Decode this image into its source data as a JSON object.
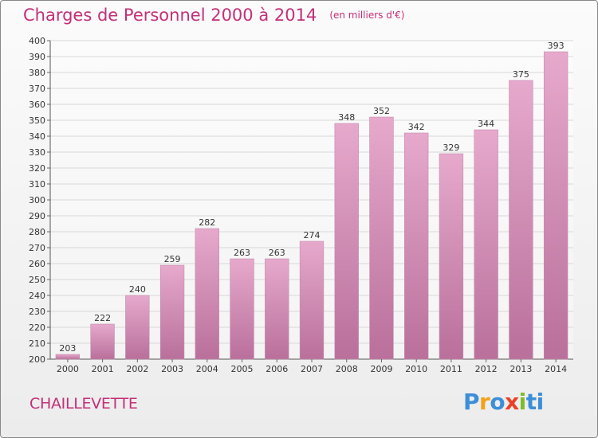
{
  "title": "Charges de Personnel 2000 à 2014",
  "title_unit": "(en milliers d'€)",
  "commune": "CHAILLEVETTE",
  "logo": "Proxiti",
  "colors": {
    "bar_top": "#e6a9cc",
    "bar_bottom": "#b9709b",
    "title": "#c42f78"
  },
  "chart_data": {
    "type": "bar",
    "title": "Charges de Personnel 2000 à 2014",
    "subtitle": "(en milliers d'€)",
    "categories": [
      "2000",
      "2001",
      "2002",
      "2003",
      "2004",
      "2005",
      "2006",
      "2007",
      "2008",
      "2009",
      "2010",
      "2011",
      "2012",
      "2013",
      "2014"
    ],
    "values": [
      203,
      222,
      240,
      259,
      282,
      263,
      263,
      274,
      348,
      352,
      342,
      329,
      344,
      375,
      393
    ],
    "ylim": [
      200,
      400
    ],
    "yticks": [
      200,
      210,
      220,
      230,
      240,
      250,
      260,
      270,
      280,
      290,
      300,
      310,
      320,
      330,
      340,
      350,
      360,
      370,
      380,
      390,
      400
    ],
    "grid": true,
    "xlabel": "",
    "ylabel": ""
  }
}
